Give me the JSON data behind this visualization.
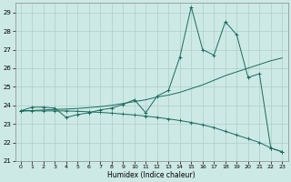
{
  "xlabel": "Humidex (Indice chaleur)",
  "xlim": [
    -0.5,
    23.5
  ],
  "ylim": [
    21,
    29.5
  ],
  "yticks": [
    21,
    22,
    23,
    24,
    25,
    26,
    27,
    28,
    29
  ],
  "xticks": [
    0,
    1,
    2,
    3,
    4,
    5,
    6,
    7,
    8,
    9,
    10,
    11,
    12,
    13,
    14,
    15,
    16,
    17,
    18,
    19,
    20,
    21,
    22,
    23
  ],
  "bg_color": "#cce9e5",
  "line_color": "#1a6b5e",
  "grid_color": "#b0cfc9",
  "line1_x": [
    0,
    1,
    2,
    3,
    4,
    5,
    6,
    7,
    8,
    9,
    10,
    11,
    12,
    13,
    14,
    15,
    16,
    17,
    18,
    19,
    20,
    21,
    22,
    23
  ],
  "line1_y": [
    23.7,
    23.9,
    23.9,
    23.85,
    23.35,
    23.5,
    23.6,
    23.75,
    23.85,
    24.05,
    24.3,
    23.6,
    24.5,
    24.8,
    26.6,
    29.3,
    27.0,
    26.7,
    28.5,
    27.8,
    25.5,
    25.7,
    21.7,
    21.5
  ],
  "line2_x": [
    0,
    1,
    2,
    3,
    4,
    5,
    6,
    7,
    8,
    9,
    10,
    11,
    12,
    13,
    14,
    15,
    16,
    17,
    18,
    19,
    20,
    21,
    22,
    23
  ],
  "line2_y": [
    23.7,
    23.72,
    23.75,
    23.78,
    23.8,
    23.83,
    23.88,
    23.93,
    24.0,
    24.1,
    24.2,
    24.3,
    24.45,
    24.55,
    24.7,
    24.9,
    25.1,
    25.35,
    25.6,
    25.8,
    26.0,
    26.2,
    26.4,
    26.55
  ],
  "line3_x": [
    0,
    1,
    2,
    3,
    4,
    5,
    6,
    7,
    8,
    9,
    10,
    11,
    12,
    13,
    14,
    15,
    16,
    17,
    18,
    19,
    20,
    21,
    22,
    23
  ],
  "line3_y": [
    23.7,
    23.7,
    23.7,
    23.7,
    23.7,
    23.68,
    23.65,
    23.62,
    23.58,
    23.53,
    23.48,
    23.42,
    23.35,
    23.27,
    23.18,
    23.08,
    22.95,
    22.8,
    22.6,
    22.4,
    22.2,
    22.0,
    21.7,
    21.5
  ]
}
